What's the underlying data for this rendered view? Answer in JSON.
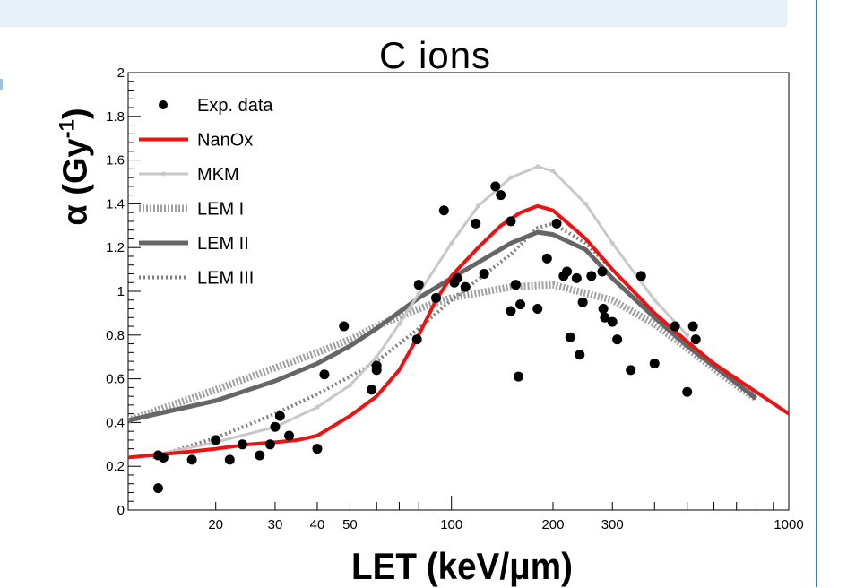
{
  "chart_data": {
    "type": "line",
    "title": "C ions",
    "xlabel": "LET (keV/μm)",
    "ylabel_main": "α (Gy",
    "ylabel_sup": "-1",
    "ylabel_close": ")",
    "xscale": "log",
    "xlim": [
      11,
      1000
    ],
    "ylim": [
      0,
      2
    ],
    "legend_position": "top-left",
    "grid": false,
    "x_tick_labels": [
      {
        "value": 20,
        "label": "20"
      },
      {
        "value": 30,
        "label": "30"
      },
      {
        "value": 40,
        "label": "40"
      },
      {
        "value": 50,
        "label": "50"
      },
      {
        "value": 100,
        "label": "100"
      },
      {
        "value": 200,
        "label": "200"
      },
      {
        "value": 300,
        "label": "300"
      },
      {
        "value": 1000,
        "label": "1000"
      }
    ],
    "y_tick_labels": [
      {
        "value": 0,
        "label": "0"
      },
      {
        "value": 0.2,
        "label": "0.2"
      },
      {
        "value": 0.4,
        "label": "0.4"
      },
      {
        "value": 0.6,
        "label": "0.6"
      },
      {
        "value": 0.8,
        "label": "0.8"
      },
      {
        "value": 1,
        "label": "1"
      },
      {
        "value": 1.2,
        "label": "1.2"
      },
      {
        "value": 1.4,
        "label": "1.4"
      },
      {
        "value": 1.6,
        "label": "1.6"
      },
      {
        "value": 1.8,
        "label": "1.8"
      },
      {
        "value": 2,
        "label": "2"
      }
    ],
    "series": [
      {
        "name": "Exp. data",
        "style": "markers",
        "color": "#000000",
        "points": [
          [
            13.5,
            0.25
          ],
          [
            14,
            0.24
          ],
          [
            13.5,
            0.1
          ],
          [
            17,
            0.23
          ],
          [
            20,
            0.32
          ],
          [
            22,
            0.23
          ],
          [
            24,
            0.3
          ],
          [
            27,
            0.25
          ],
          [
            29,
            0.3
          ],
          [
            30,
            0.38
          ],
          [
            31,
            0.43
          ],
          [
            33,
            0.34
          ],
          [
            40,
            0.28
          ],
          [
            42,
            0.62
          ],
          [
            48,
            0.84
          ],
          [
            58,
            0.55
          ],
          [
            60,
            0.64
          ],
          [
            60,
            0.66
          ],
          [
            79,
            0.78
          ],
          [
            80,
            1.03
          ],
          [
            90,
            0.97
          ],
          [
            95,
            1.37
          ],
          [
            102,
            1.04
          ],
          [
            104,
            1.06
          ],
          [
            110,
            1.02
          ],
          [
            118,
            1.31
          ],
          [
            125,
            1.08
          ],
          [
            135,
            1.48
          ],
          [
            140,
            1.44
          ],
          [
            150,
            0.91
          ],
          [
            150,
            1.32
          ],
          [
            155,
            1.03
          ],
          [
            158,
            0.61
          ],
          [
            160,
            0.94
          ],
          [
            180,
            0.92
          ],
          [
            192,
            1.15
          ],
          [
            205,
            1.31
          ],
          [
            215,
            1.07
          ],
          [
            220,
            1.09
          ],
          [
            225,
            0.79
          ],
          [
            235,
            1.06
          ],
          [
            240,
            0.71
          ],
          [
            245,
            0.95
          ],
          [
            260,
            1.07
          ],
          [
            280,
            1.09
          ],
          [
            282,
            0.92
          ],
          [
            285,
            0.88
          ],
          [
            300,
            0.86
          ],
          [
            310,
            0.78
          ],
          [
            340,
            0.64
          ],
          [
            365,
            1.07
          ],
          [
            400,
            0.67
          ],
          [
            460,
            0.84
          ],
          [
            500,
            0.54
          ],
          [
            520,
            0.84
          ],
          [
            530,
            0.78
          ]
        ]
      },
      {
        "name": "NanOx",
        "style": "solid",
        "color": "#ee1111",
        "points": [
          [
            11,
            0.24
          ],
          [
            15,
            0.26
          ],
          [
            20,
            0.28
          ],
          [
            25,
            0.3
          ],
          [
            30,
            0.31
          ],
          [
            35,
            0.32
          ],
          [
            40,
            0.34
          ],
          [
            50,
            0.43
          ],
          [
            60,
            0.52
          ],
          [
            70,
            0.64
          ],
          [
            80,
            0.8
          ],
          [
            90,
            0.96
          ],
          [
            100,
            1.07
          ],
          [
            120,
            1.2
          ],
          [
            140,
            1.3
          ],
          [
            160,
            1.36
          ],
          [
            180,
            1.39
          ],
          [
            200,
            1.37
          ],
          [
            250,
            1.24
          ],
          [
            300,
            1.1
          ],
          [
            400,
            0.9
          ],
          [
            500,
            0.77
          ],
          [
            600,
            0.67
          ],
          [
            800,
            0.54
          ],
          [
            1000,
            0.44
          ]
        ]
      },
      {
        "name": "MKM",
        "style": "solid-markers",
        "color": "#c8c8c8",
        "points": [
          [
            13,
            0.25
          ],
          [
            20,
            0.31
          ],
          [
            30,
            0.38
          ],
          [
            40,
            0.47
          ],
          [
            50,
            0.57
          ],
          [
            60,
            0.7
          ],
          [
            70,
            0.85
          ],
          [
            80,
            0.99
          ],
          [
            100,
            1.22
          ],
          [
            120,
            1.39
          ],
          [
            150,
            1.52
          ],
          [
            180,
            1.57
          ],
          [
            200,
            1.55
          ],
          [
            250,
            1.4
          ],
          [
            300,
            1.22
          ],
          [
            400,
            0.96
          ],
          [
            500,
            0.8
          ]
        ]
      },
      {
        "name": "LEM I",
        "style": "hatched",
        "color": "#a0a0a0",
        "points": [
          [
            11,
            0.41
          ],
          [
            20,
            0.55
          ],
          [
            30,
            0.65
          ],
          [
            40,
            0.72
          ],
          [
            50,
            0.78
          ],
          [
            60,
            0.84
          ],
          [
            80,
            0.92
          ],
          [
            100,
            0.97
          ],
          [
            150,
            1.02
          ],
          [
            200,
            1.03
          ],
          [
            300,
            0.96
          ],
          [
            400,
            0.85
          ],
          [
            500,
            0.74
          ],
          [
            700,
            0.57
          ],
          [
            800,
            0.51
          ]
        ]
      },
      {
        "name": "LEM II",
        "style": "solid",
        "color": "#666666",
        "points": [
          [
            11,
            0.41
          ],
          [
            20,
            0.5
          ],
          [
            30,
            0.59
          ],
          [
            40,
            0.67
          ],
          [
            50,
            0.75
          ],
          [
            60,
            0.83
          ],
          [
            80,
            0.97
          ],
          [
            100,
            1.06
          ],
          [
            150,
            1.22
          ],
          [
            180,
            1.27
          ],
          [
            200,
            1.26
          ],
          [
            250,
            1.19
          ],
          [
            300,
            1.06
          ],
          [
            400,
            0.88
          ],
          [
            500,
            0.75
          ],
          [
            700,
            0.58
          ],
          [
            800,
            0.51
          ]
        ]
      },
      {
        "name": "LEM III",
        "style": "dotted",
        "color": "#808080",
        "points": [
          [
            13,
            0.24
          ],
          [
            20,
            0.33
          ],
          [
            30,
            0.44
          ],
          [
            40,
            0.53
          ],
          [
            50,
            0.61
          ],
          [
            60,
            0.68
          ],
          [
            80,
            0.83
          ],
          [
            100,
            0.96
          ],
          [
            150,
            1.17
          ],
          [
            180,
            1.29
          ],
          [
            200,
            1.31
          ],
          [
            250,
            1.22
          ],
          [
            300,
            1.1
          ],
          [
            400,
            0.9
          ],
          [
            500,
            0.76
          ],
          [
            700,
            0.59
          ],
          [
            800,
            0.52
          ]
        ]
      }
    ]
  }
}
